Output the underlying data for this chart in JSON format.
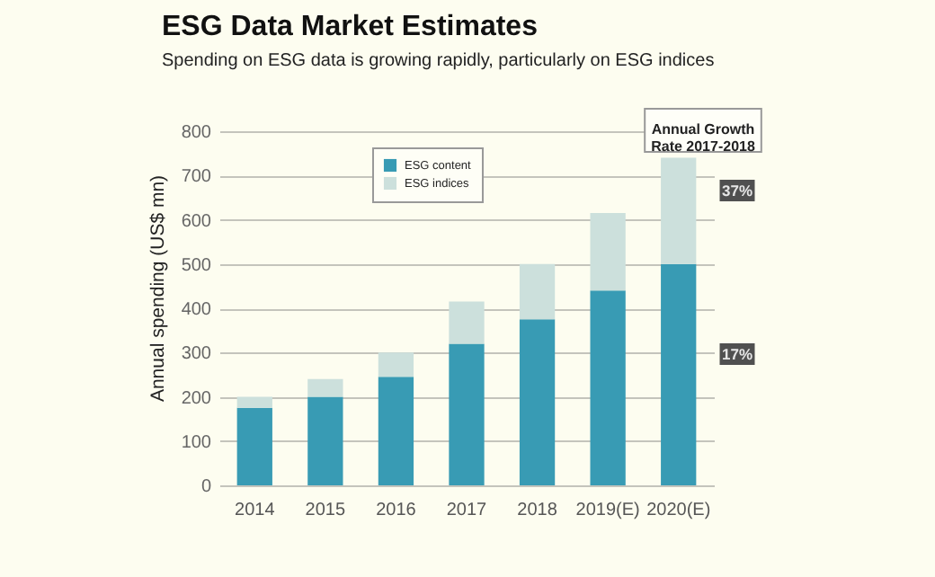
{
  "chart_data": {
    "type": "bar",
    "title": "ESG Data Market Estimates",
    "subtitle": "Spending on ESG data is growing rapidly, particularly on ESG indices",
    "ylabel": "Annual spending (US$ mn)",
    "categories": [
      "2014",
      "2015",
      "2016",
      "2017",
      "2018",
      "2019(E)",
      "2020(E)"
    ],
    "stacked": true,
    "series": [
      {
        "name": "ESG content",
        "color": "#389bb4",
        "values": [
          175,
          200,
          245,
          320,
          375,
          440,
          500
        ]
      },
      {
        "name": "ESG indices",
        "color": "#cce0dc",
        "values": [
          25,
          40,
          55,
          95,
          125,
          175,
          240
        ]
      }
    ],
    "ylim": [
      0,
      800
    ],
    "yticks": [
      0,
      100,
      200,
      300,
      400,
      500,
      600,
      700,
      800
    ],
    "grid": "y",
    "legend": "top left",
    "annotations": [
      "Annual Growth Rate 2017-2018",
      "37%",
      "17%"
    ]
  }
}
